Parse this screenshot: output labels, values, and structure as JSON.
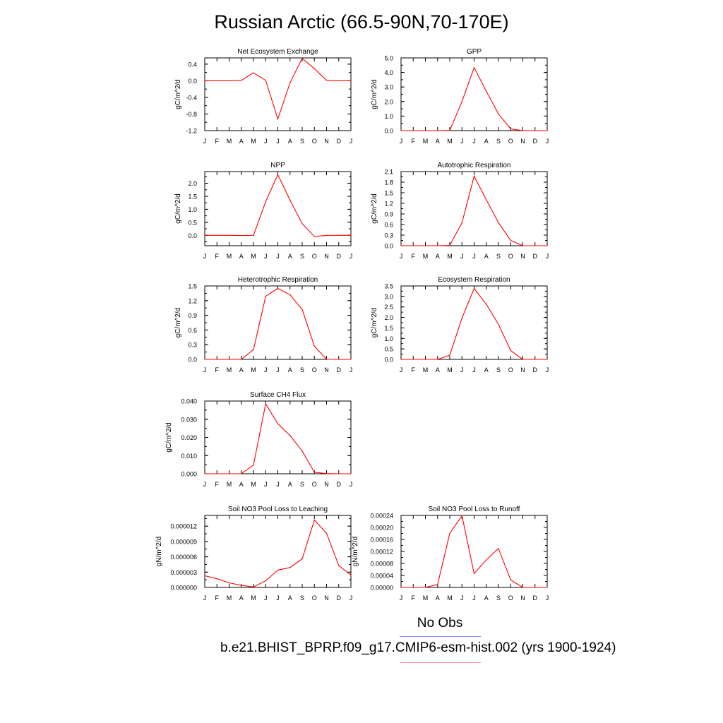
{
  "title": "Russian Arctic (66.5-90N,70-170E)",
  "legend": {
    "obs_label": "No Obs",
    "obs_color": "#8a8aff",
    "case_label": "b.e21.BHIST_BPRP.f09_g17.CMIP6-esm-hist.002 (yrs 1900-1924)",
    "case_color": "#ff8a8a"
  },
  "line_color": "#ff0000",
  "chart_data": [
    {
      "type": "line",
      "title": "Net Ecosystem Exchange",
      "ylabel": "gC/m^2/d",
      "categories": [
        "J",
        "F",
        "M",
        "A",
        "M",
        "J",
        "J",
        "A",
        "S",
        "O",
        "N",
        "D",
        "J"
      ],
      "values": [
        0.0,
        0.0,
        0.0,
        0.01,
        0.19,
        0.01,
        -0.92,
        -0.05,
        0.54,
        0.29,
        0.01,
        0.0,
        0.0
      ],
      "ylim": [
        -1.2,
        0.55
      ],
      "yticks": [
        "-1.2",
        "-0.8",
        "-0.4",
        "0.0",
        "0.4"
      ],
      "ytick_values": [
        -1.2,
        -0.8,
        -0.4,
        0.0,
        0.4
      ],
      "grid": false
    },
    {
      "type": "line",
      "title": "GPP",
      "ylabel": "gC/m^2/d",
      "categories": [
        "J",
        "F",
        "M",
        "A",
        "M",
        "J",
        "J",
        "A",
        "S",
        "O",
        "N",
        "D",
        "J"
      ],
      "values": [
        0.0,
        0.0,
        0.0,
        0.0,
        0.01,
        2.0,
        4.33,
        2.7,
        1.15,
        0.12,
        0.0,
        0.0,
        0.0
      ],
      "ylim": [
        0,
        5.0
      ],
      "yticks": [
        "0.0",
        "1.0",
        "2.0",
        "3.0",
        "4.0",
        "5.0"
      ],
      "ytick_values": [
        0,
        1,
        2,
        3,
        4,
        5
      ],
      "grid": false
    },
    {
      "type": "line",
      "title": "NPP",
      "ylabel": "gC/m^2/d",
      "categories": [
        "J",
        "F",
        "M",
        "A",
        "M",
        "J",
        "J",
        "A",
        "S",
        "O",
        "N",
        "D",
        "J"
      ],
      "values": [
        0.0,
        0.0,
        0.0,
        -0.01,
        0.0,
        1.3,
        2.33,
        1.35,
        0.45,
        -0.05,
        0.0,
        0.0,
        0.0
      ],
      "ylim": [
        -0.4,
        2.45
      ],
      "yticks": [
        "0.0",
        "0.5",
        "1.0",
        "1.5",
        "2.0"
      ],
      "ytick_values": [
        0,
        0.5,
        1,
        1.5,
        2
      ],
      "grid": false
    },
    {
      "type": "line",
      "title": "Autotrophic Respiration",
      "ylabel": "gC/m^2/d",
      "categories": [
        "J",
        "F",
        "M",
        "A",
        "M",
        "J",
        "J",
        "A",
        "S",
        "O",
        "N",
        "D",
        "J"
      ],
      "values": [
        0.0,
        0.0,
        0.0,
        0.0,
        0.01,
        0.65,
        1.97,
        1.3,
        0.65,
        0.15,
        0.0,
        0.0,
        0.0
      ],
      "ylim": [
        0,
        2.1
      ],
      "yticks": [
        "0.0",
        "0.3",
        "0.6",
        "0.9",
        "1.2",
        "1.5",
        "1.8",
        "2.1"
      ],
      "ytick_values": [
        0,
        0.3,
        0.6,
        0.9,
        1.2,
        1.5,
        1.8,
        2.1
      ],
      "grid": false
    },
    {
      "type": "line",
      "title": "Heterotrophic Respiration",
      "ylabel": "gC/m^2/d",
      "categories": [
        "J",
        "F",
        "M",
        "A",
        "M",
        "J",
        "J",
        "A",
        "S",
        "O",
        "N",
        "D",
        "J"
      ],
      "values": [
        0.0,
        0.0,
        0.0,
        0.0,
        0.2,
        1.29,
        1.45,
        1.32,
        1.02,
        0.27,
        0.0,
        0.0,
        0.0
      ],
      "ylim": [
        0,
        1.5
      ],
      "yticks": [
        "0.0",
        "0.3",
        "0.6",
        "0.9",
        "1.2",
        "1.5"
      ],
      "ytick_values": [
        0,
        0.3,
        0.6,
        0.9,
        1.2,
        1.5
      ],
      "grid": false
    },
    {
      "type": "line",
      "title": "Ecosystem Respiration",
      "ylabel": "gC/m^2/d",
      "categories": [
        "J",
        "F",
        "M",
        "A",
        "M",
        "J",
        "J",
        "A",
        "S",
        "O",
        "N",
        "D",
        "J"
      ],
      "values": [
        0.0,
        0.0,
        0.0,
        0.0,
        0.2,
        1.97,
        3.38,
        2.62,
        1.67,
        0.42,
        0.0,
        0.0,
        0.0
      ],
      "ylim": [
        0,
        3.5
      ],
      "yticks": [
        "0.0",
        "0.5",
        "1.0",
        "1.5",
        "2.0",
        "2.5",
        "3.0",
        "3.5"
      ],
      "ytick_values": [
        0,
        0.5,
        1,
        1.5,
        2,
        2.5,
        3,
        3.5
      ],
      "grid": false
    },
    {
      "type": "line",
      "title": "Surface CH4 Flux",
      "ylabel": "gC/m^2/d",
      "categories": [
        "J",
        "F",
        "M",
        "A",
        "M",
        "J",
        "J",
        "A",
        "S",
        "O",
        "N",
        "D",
        "J"
      ],
      "values": [
        0.0,
        0.0,
        0.0,
        0.0,
        0.0048,
        0.0385,
        0.0275,
        0.021,
        0.0125,
        0.0008,
        0.0001,
        0.0,
        0.0
      ],
      "ylim": [
        0,
        0.04
      ],
      "yticks": [
        "0.000",
        "0.010",
        "0.020",
        "0.030",
        "0.040"
      ],
      "ytick_values": [
        0,
        0.01,
        0.02,
        0.03,
        0.04
      ],
      "grid": false
    },
    {
      "type": "line",
      "title": "Soil NO3 Pool Loss to Leaching",
      "ylabel": "gN/m^2/d",
      "categories": [
        "J",
        "F",
        "M",
        "A",
        "M",
        "J",
        "J",
        "A",
        "S",
        "O",
        "N",
        "D",
        "J"
      ],
      "values": [
        2.3e-06,
        1.7e-06,
        9e-07,
        4e-07,
        1e-07,
        1.3e-06,
        3.4e-06,
        3.9e-06,
        5.6e-06,
        1.32e-05,
        1.06e-05,
        4.3e-06,
        2.4e-06
      ],
      "ylim": [
        0,
        1.41e-05
      ],
      "yticks": [
        "0.000000",
        "0.000003",
        "0.000006",
        "0.000009",
        "0.000012"
      ],
      "ytick_values": [
        0,
        3e-06,
        6e-06,
        9e-06,
        1.2e-05
      ],
      "grid": false
    },
    {
      "type": "line",
      "title": "Soil NO3 Pool Loss to Runoff",
      "ylabel": "gN/m^2/d",
      "categories": [
        "J",
        "F",
        "M",
        "A",
        "M",
        "J",
        "J",
        "A",
        "S",
        "O",
        "N",
        "D",
        "J"
      ],
      "values": [
        0.0,
        0.0,
        0.0,
        1e-05,
        0.00018,
        0.000239,
        4.6e-05,
        9.2e-05,
        0.00013,
        2.5e-05,
        0.0,
        0.0,
        0.0
      ],
      "ylim": [
        0,
        0.00024
      ],
      "yticks": [
        "0.00000",
        "0.00004",
        "0.00008",
        "0.00012",
        "0.00016",
        "0.00020",
        "0.00024"
      ],
      "ytick_values": [
        0,
        4e-05,
        8e-05,
        0.00012,
        0.00016,
        0.0002,
        0.00024
      ],
      "grid": false
    }
  ]
}
